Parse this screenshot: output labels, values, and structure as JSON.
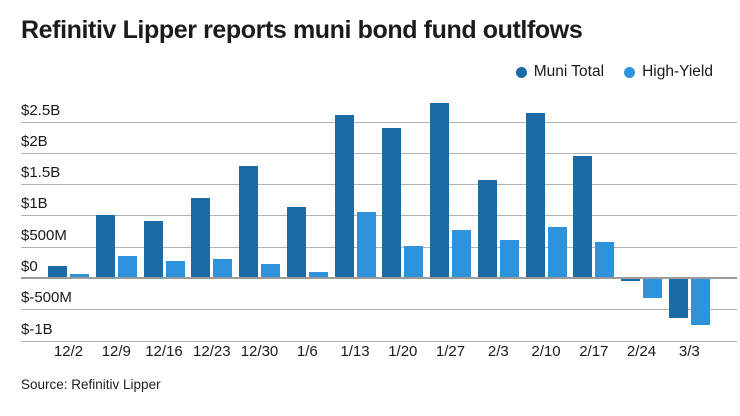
{
  "title": "Refinitiv Lipper reports muni bond fund outlfows",
  "source": "Source: Refinitiv Lipper",
  "chart_data": {
    "type": "bar",
    "title": "Refinitiv Lipper reports muni bond fund outlfows",
    "unit": "millions USD",
    "grid": true,
    "legend_position": "top-right",
    "categories": [
      "12/2",
      "12/9",
      "12/16",
      "12/23",
      "12/30",
      "1/6",
      "1/13",
      "1/20",
      "1/27",
      "2/3",
      "2/10",
      "2/17",
      "2/24",
      "3/3"
    ],
    "series": [
      {
        "name": "Muni Total",
        "color": "#1d6ba4",
        "values": [
          190,
          1000,
          910,
          1280,
          1790,
          1140,
          2600,
          2390,
          2790,
          1570,
          2630,
          1950,
          -40,
          -645
        ]
      },
      {
        "name": "High-Yield",
        "color": "#2e93da",
        "values": [
          70,
          360,
          270,
          310,
          220,
          90,
          1060,
          510,
          770,
          610,
          820,
          580,
          -320,
          -755
        ]
      }
    ],
    "yticks": [
      {
        "value": 2500,
        "label": "$2.5B"
      },
      {
        "value": 2000,
        "label": "$2B"
      },
      {
        "value": 1500,
        "label": "$1.5B"
      },
      {
        "value": 1000,
        "label": "$1B"
      },
      {
        "value": 500,
        "label": "$500M"
      },
      {
        "value": 0,
        "label": "$0"
      },
      {
        "value": -500,
        "label": "$-500M"
      },
      {
        "value": -1000,
        "label": "$-1B"
      }
    ],
    "ylim": [
      -1000,
      2900
    ],
    "xlabel": "",
    "ylabel": ""
  }
}
